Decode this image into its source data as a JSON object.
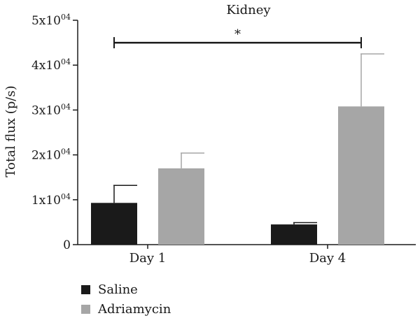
{
  "chart_data": {
    "type": "bar",
    "title": "Kidney",
    "ylabel": "Total flux (p/s)",
    "xlabel": "",
    "ylim": [
      0,
      50000
    ],
    "yticks": [
      {
        "value": 0,
        "base": "0",
        "exp": ""
      },
      {
        "value": 10000,
        "base": "1x10",
        "exp": "04"
      },
      {
        "value": 20000,
        "base": "2x10",
        "exp": "04"
      },
      {
        "value": 30000,
        "base": "3x10",
        "exp": "04"
      },
      {
        "value": 40000,
        "base": "4x10",
        "exp": "04"
      },
      {
        "value": 50000,
        "base": "5x10",
        "exp": "04"
      }
    ],
    "categories": [
      "Day 1",
      "Day 4"
    ],
    "series": [
      {
        "name": "Saline",
        "color": "#1a1a1a",
        "values": [
          9300,
          4500
        ],
        "errors": [
          3900,
          400
        ]
      },
      {
        "name": "Adriamycin",
        "color": "#a6a6a6",
        "values": [
          17000,
          30800
        ],
        "errors": [
          3400,
          11700
        ]
      }
    ],
    "significance": {
      "label": "*",
      "from_series": "Saline",
      "from_category": "Day 1",
      "to_series": "Adriamycin",
      "to_category": "Day 4",
      "level": 45000
    },
    "legend": {
      "position": "bottom-left"
    },
    "grid": false
  }
}
